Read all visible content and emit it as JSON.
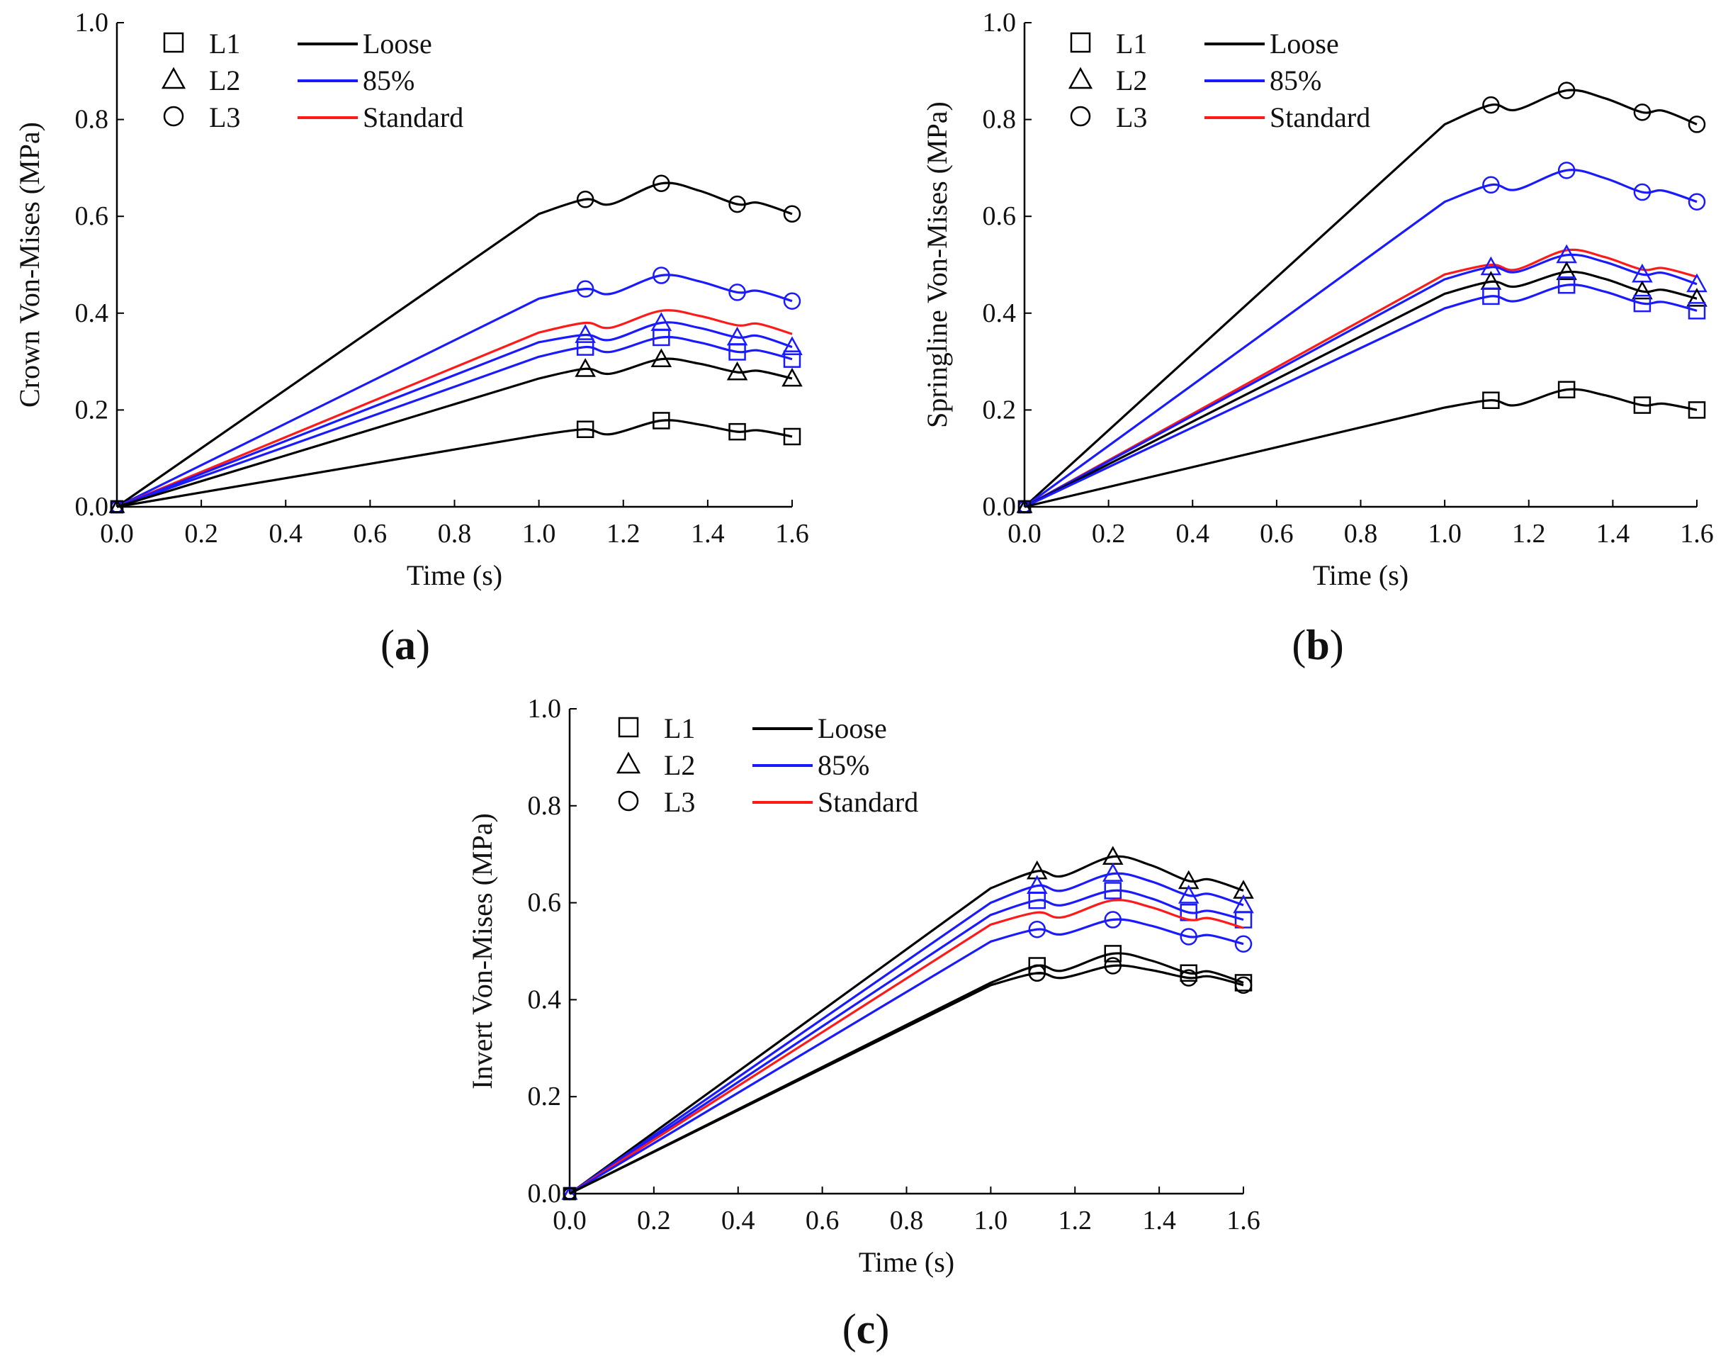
{
  "chart_data": [
    {
      "id": "a",
      "type": "line",
      "panel_label": "(a)",
      "panel_letter": "a",
      "xlabel": "Time (s)",
      "ylabel": "Crown Von-Mises (MPa)",
      "xlim": [
        0,
        1.6
      ],
      "ylim": [
        0,
        1.0
      ],
      "xticks": [
        "0.0",
        "0.2",
        "0.4",
        "0.6",
        "0.8",
        "1.0",
        "1.2",
        "1.4",
        "1.6"
      ],
      "yticks": [
        "0.0",
        "0.2",
        "0.4",
        "0.6",
        "0.8",
        "1.0"
      ],
      "legend": {
        "markers": [
          {
            "symbol": "square",
            "label": "L1"
          },
          {
            "symbol": "triangle",
            "label": "L2"
          },
          {
            "symbol": "circle",
            "label": "L3"
          }
        ],
        "lines": [
          {
            "color": "#000000",
            "label": "Loose"
          },
          {
            "color": "#1a1aff",
            "label": "85%"
          },
          {
            "color": "#ff1a1a",
            "label": "Standard"
          }
        ]
      },
      "series": [
        {
          "name": "Loose L3",
          "color": "#000000",
          "marker": "circle",
          "peak": 0.605,
          "v1": 0.635,
          "v2": 0.668,
          "v3": 0.625,
          "vend": 0.605
        },
        {
          "name": "85% L3",
          "color": "#1a1aff",
          "marker": "circle",
          "peak": 0.43,
          "v1": 0.45,
          "v2": 0.478,
          "v3": 0.443,
          "vend": 0.425
        },
        {
          "name": "Standard",
          "color": "#ff1a1a",
          "marker": "none",
          "peak": 0.36,
          "v1": 0.38,
          "v2": 0.405,
          "v3": 0.375,
          "vend": 0.357
        },
        {
          "name": "85% L2",
          "color": "#1a1aff",
          "marker": "triangle",
          "peak": 0.34,
          "v1": 0.355,
          "v2": 0.38,
          "v3": 0.35,
          "vend": 0.33
        },
        {
          "name": "85% L1",
          "color": "#1a1aff",
          "marker": "square",
          "peak": 0.31,
          "v1": 0.33,
          "v2": 0.35,
          "v3": 0.32,
          "vend": 0.305
        },
        {
          "name": "Loose L2",
          "color": "#000000",
          "marker": "triangle",
          "peak": 0.265,
          "v1": 0.285,
          "v2": 0.305,
          "v3": 0.278,
          "vend": 0.265
        },
        {
          "name": "Loose L1",
          "color": "#000000",
          "marker": "square",
          "peak": 0.148,
          "v1": 0.16,
          "v2": 0.178,
          "v3": 0.155,
          "vend": 0.145
        }
      ]
    },
    {
      "id": "b",
      "type": "line",
      "panel_label": "(b)",
      "panel_letter": "b",
      "xlabel": "Time (s)",
      "ylabel": "Springline Von-Mises (MPa)",
      "xlim": [
        0,
        1.6
      ],
      "ylim": [
        0,
        1.0
      ],
      "xticks": [
        "0.0",
        "0.2",
        "0.4",
        "0.6",
        "0.8",
        "1.0",
        "1.2",
        "1.4",
        "1.6"
      ],
      "yticks": [
        "0.0",
        "0.2",
        "0.4",
        "0.6",
        "0.8",
        "1.0"
      ],
      "legend": {
        "markers": [
          {
            "symbol": "square",
            "label": "L1"
          },
          {
            "symbol": "triangle",
            "label": "L2"
          },
          {
            "symbol": "circle",
            "label": "L3"
          }
        ],
        "lines": [
          {
            "color": "#000000",
            "label": "Loose"
          },
          {
            "color": "#1a1aff",
            "label": "85%"
          },
          {
            "color": "#ff1a1a",
            "label": "Standard"
          }
        ]
      },
      "series": [
        {
          "name": "Loose L3",
          "color": "#000000",
          "marker": "circle",
          "peak": 0.79,
          "v1": 0.83,
          "v2": 0.86,
          "v3": 0.815,
          "vend": 0.79
        },
        {
          "name": "85% L3",
          "color": "#1a1aff",
          "marker": "circle",
          "peak": 0.63,
          "v1": 0.665,
          "v2": 0.695,
          "v3": 0.65,
          "vend": 0.63
        },
        {
          "name": "Standard",
          "color": "#ff1a1a",
          "marker": "none",
          "peak": 0.48,
          "v1": 0.5,
          "v2": 0.53,
          "v3": 0.49,
          "vend": 0.475
        },
        {
          "name": "85% L2",
          "color": "#1a1aff",
          "marker": "triangle",
          "peak": 0.47,
          "v1": 0.495,
          "v2": 0.52,
          "v3": 0.48,
          "vend": 0.46
        },
        {
          "name": "Loose L2",
          "color": "#000000",
          "marker": "triangle",
          "peak": 0.44,
          "v1": 0.465,
          "v2": 0.485,
          "v3": 0.445,
          "vend": 0.43
        },
        {
          "name": "85% L1",
          "color": "#1a1aff",
          "marker": "square",
          "peak": 0.41,
          "v1": 0.435,
          "v2": 0.458,
          "v3": 0.42,
          "vend": 0.405
        },
        {
          "name": "Loose L1",
          "color": "#000000",
          "marker": "square",
          "peak": 0.205,
          "v1": 0.22,
          "v2": 0.242,
          "v3": 0.21,
          "vend": 0.2
        }
      ]
    },
    {
      "id": "c",
      "type": "line",
      "panel_label": "(c)",
      "panel_letter": "c",
      "xlabel": "Time (s)",
      "ylabel": "Invert Von-Mises (MPa)",
      "xlim": [
        0,
        1.6
      ],
      "ylim": [
        0,
        1.0
      ],
      "xticks": [
        "0.0",
        "0.2",
        "0.4",
        "0.6",
        "0.8",
        "1.0",
        "1.2",
        "1.4",
        "1.6"
      ],
      "yticks": [
        "0.0",
        "0.2",
        "0.4",
        "0.6",
        "0.8",
        "1.0"
      ],
      "legend": {
        "markers": [
          {
            "symbol": "square",
            "label": "L1"
          },
          {
            "symbol": "triangle",
            "label": "L2"
          },
          {
            "symbol": "circle",
            "label": "L3"
          }
        ],
        "lines": [
          {
            "color": "#000000",
            "label": "Loose"
          },
          {
            "color": "#1a1aff",
            "label": "85%"
          },
          {
            "color": "#ff1a1a",
            "label": "Standard"
          }
        ]
      },
      "series": [
        {
          "name": "Loose L2",
          "color": "#000000",
          "marker": "triangle",
          "peak": 0.63,
          "v1": 0.665,
          "v2": 0.695,
          "v3": 0.645,
          "vend": 0.625
        },
        {
          "name": "85% L2",
          "color": "#1a1aff",
          "marker": "triangle",
          "peak": 0.6,
          "v1": 0.635,
          "v2": 0.66,
          "v3": 0.615,
          "vend": 0.595
        },
        {
          "name": "85% L1",
          "color": "#1a1aff",
          "marker": "square",
          "peak": 0.575,
          "v1": 0.605,
          "v2": 0.625,
          "v3": 0.58,
          "vend": 0.565
        },
        {
          "name": "Standard",
          "color": "#ff1a1a",
          "marker": "none",
          "peak": 0.555,
          "v1": 0.58,
          "v2": 0.605,
          "v3": 0.565,
          "vend": 0.548
        },
        {
          "name": "85% L3",
          "color": "#1a1aff",
          "marker": "circle",
          "peak": 0.52,
          "v1": 0.545,
          "v2": 0.565,
          "v3": 0.53,
          "vend": 0.515
        },
        {
          "name": "Loose L1",
          "color": "#000000",
          "marker": "square",
          "peak": 0.435,
          "v1": 0.47,
          "v2": 0.495,
          "v3": 0.455,
          "vend": 0.435
        },
        {
          "name": "Loose L3",
          "color": "#000000",
          "marker": "circle",
          "peak": 0.43,
          "v1": 0.455,
          "v2": 0.47,
          "v3": 0.445,
          "vend": 0.43
        }
      ]
    }
  ]
}
